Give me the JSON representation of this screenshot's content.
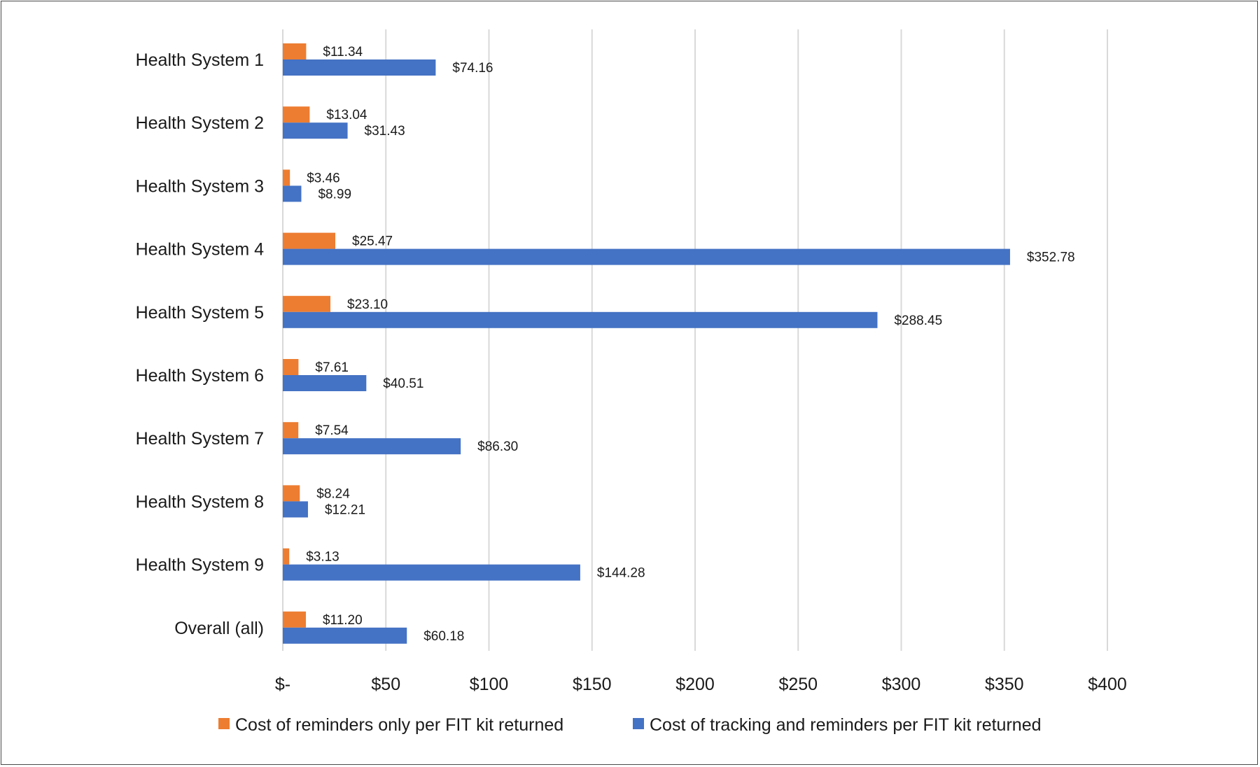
{
  "chart_data": {
    "type": "bar",
    "orientation": "horizontal",
    "categories": [
      "Health System 1",
      "Health System 2",
      "Health System 3",
      "Health System 4",
      "Health System 5",
      "Health System 6",
      "Health System 7",
      "Health System 8",
      "Health System 9",
      "Overall (all)"
    ],
    "series": [
      {
        "name": "Cost of reminders only per FIT kit returned",
        "color": "#ED7D31",
        "values": [
          11.34,
          13.04,
          3.46,
          25.47,
          23.1,
          7.61,
          7.54,
          8.24,
          3.13,
          11.2
        ],
        "labels": [
          "$11.34",
          "$13.04",
          "$3.46",
          "$25.47",
          "$23.10",
          "$7.61",
          "$7.54",
          "$8.24",
          "$3.13",
          "$11.20"
        ]
      },
      {
        "name": "Cost of tracking and reminders per FIT kit returned",
        "color": "#4472C4",
        "values": [
          74.16,
          31.43,
          8.99,
          352.78,
          288.45,
          40.51,
          86.3,
          12.21,
          144.28,
          60.18
        ],
        "labels": [
          "$74.16",
          "$31.43",
          "$8.99",
          "$352.78",
          "$288.45",
          "$40.51",
          "$86.30",
          "$12.21",
          "$144.28",
          "$60.18"
        ]
      }
    ],
    "xlim": [
      0,
      400
    ],
    "xticks": [
      0,
      50,
      100,
      150,
      200,
      250,
      300,
      350,
      400
    ],
    "xtick_labels": [
      "$-",
      "$50",
      "$100",
      "$150",
      "$200",
      "$250",
      "$300",
      "$350",
      "$400"
    ],
    "grid": true,
    "gridline_color": "#D9D9D9",
    "legend_position": "bottom"
  }
}
